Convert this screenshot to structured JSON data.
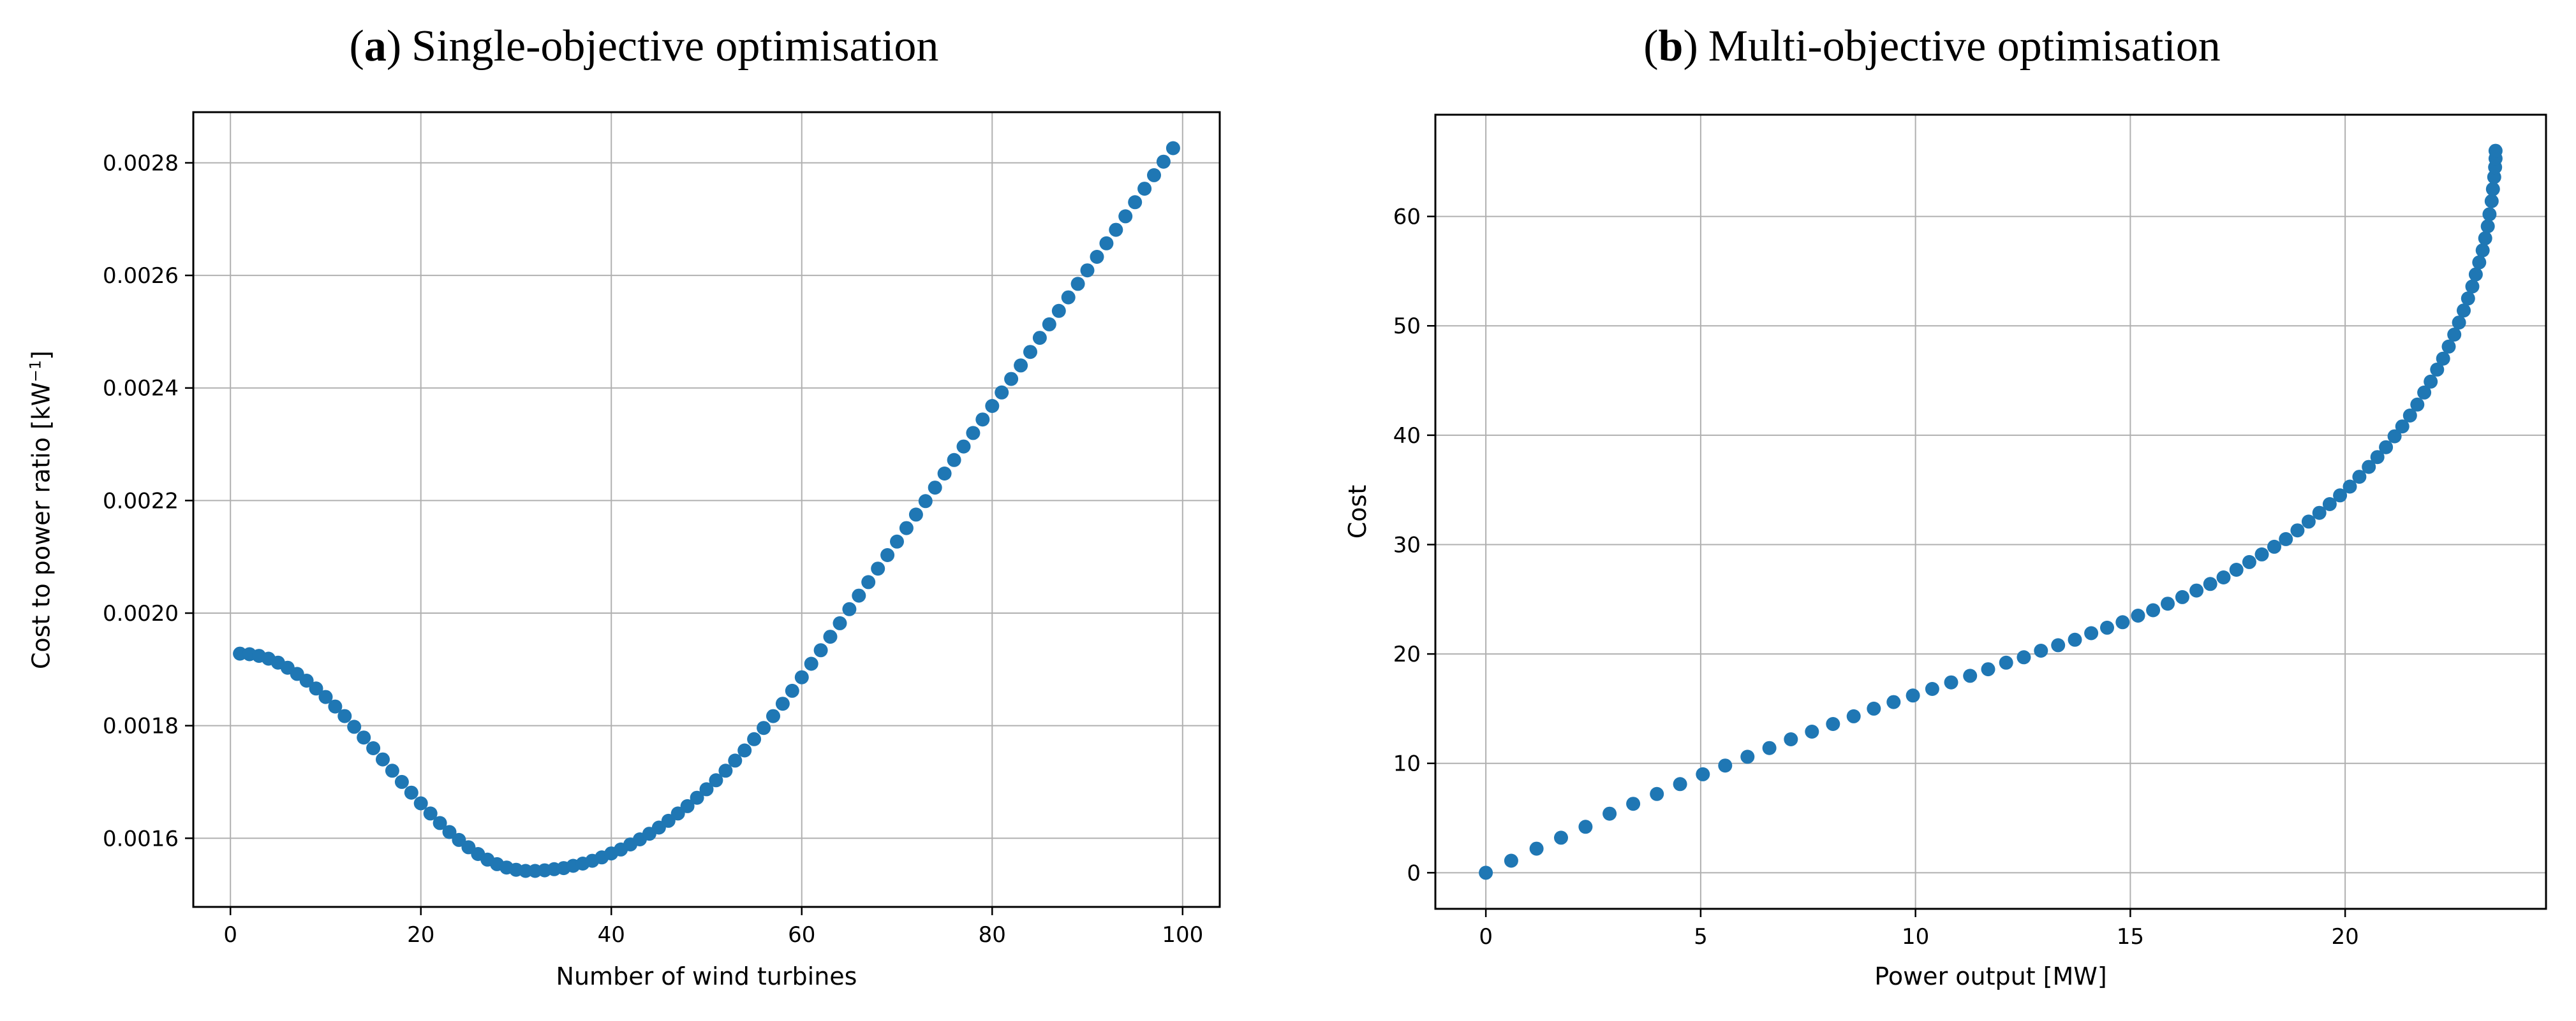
{
  "figure": {
    "background": "#ffffff",
    "marker_color": "#1f77b4",
    "grid_color": "#b0b0b0",
    "spine_color": "#000000"
  },
  "chart_data": [
    {
      "type": "scatter",
      "tag_open": "(",
      "tag_letter": "a",
      "tag_close": ")",
      "title": "Single-objective optimisation",
      "xlabel": "Number of wind turbines",
      "ylabel_pre": "Cost to power ratio [kW",
      "ylabel_sup": "−1",
      "ylabel_post": "]",
      "legend": "none",
      "grid": true,
      "xlim": [
        -3.9,
        103.9
      ],
      "ylim": [
        0.001478,
        0.00289
      ],
      "xticks": [
        0,
        20,
        40,
        60,
        80,
        100
      ],
      "xtick_labels": [
        "0",
        "20",
        "40",
        "60",
        "80",
        "100"
      ],
      "yticks": [
        0.0016,
        0.0018,
        0.002,
        0.0022,
        0.0024,
        0.0026,
        0.0028
      ],
      "ytick_labels": [
        "0.0016",
        "0.0018",
        "0.0020",
        "0.0022",
        "0.0024",
        "0.0026",
        "0.0028"
      ],
      "x": [
        1,
        2,
        3,
        4,
        5,
        6,
        7,
        8,
        9,
        10,
        11,
        12,
        13,
        14,
        15,
        16,
        17,
        18,
        19,
        20,
        21,
        22,
        23,
        24,
        25,
        26,
        27,
        28,
        29,
        30,
        31,
        32,
        33,
        34,
        35,
        36,
        37,
        38,
        39,
        40,
        41,
        42,
        43,
        44,
        45,
        46,
        47,
        48,
        49,
        50,
        51,
        52,
        53,
        54,
        55,
        56,
        57,
        58,
        59,
        60,
        61,
        62,
        63,
        64,
        65,
        66,
        67,
        68,
        69,
        70,
        71,
        72,
        73,
        74,
        75,
        76,
        77,
        78,
        79,
        80,
        81,
        82,
        83,
        84,
        85,
        86,
        87,
        88,
        89,
        90,
        91,
        92,
        93,
        94,
        95,
        96,
        97,
        98,
        99
      ],
      "y": [
        0.001928,
        0.001927,
        0.001924,
        0.001919,
        0.001912,
        0.001903,
        0.001892,
        0.00188,
        0.001866,
        0.001851,
        0.001834,
        0.001817,
        0.001798,
        0.001779,
        0.00176,
        0.00174,
        0.00172,
        0.0017,
        0.001681,
        0.001662,
        0.001644,
        0.001627,
        0.001611,
        0.001597,
        0.001584,
        0.001572,
        0.001562,
        0.001554,
        0.001548,
        0.001544,
        0.001542,
        0.001542,
        0.001543,
        0.001545,
        0.001547,
        0.001551,
        0.001555,
        0.00156,
        0.001566,
        0.001573,
        0.00158,
        0.001589,
        0.001598,
        0.001608,
        0.001619,
        0.001631,
        0.001644,
        0.001657,
        0.001672,
        0.001687,
        0.001703,
        0.00172,
        0.001738,
        0.001756,
        0.001776,
        0.001796,
        0.001817,
        0.001839,
        0.001862,
        0.001886,
        0.00191,
        0.001934,
        0.001958,
        0.001982,
        0.002007,
        0.002031,
        0.002055,
        0.002079,
        0.002103,
        0.002127,
        0.002151,
        0.002175,
        0.002199,
        0.002223,
        0.002248,
        0.002272,
        0.002296,
        0.00232,
        0.002344,
        0.002368,
        0.002392,
        0.002416,
        0.00244,
        0.002464,
        0.002489,
        0.002513,
        0.002537,
        0.002561,
        0.002585,
        0.002609,
        0.002633,
        0.002657,
        0.002681,
        0.002705,
        0.00273,
        0.002754,
        0.002778,
        0.002802,
        0.002826
      ]
    },
    {
      "type": "scatter",
      "tag_open": "(",
      "tag_letter": "b",
      "tag_close": ")",
      "title": "Multi-objective optimisation",
      "xlabel": "Power output [MW]",
      "ylabel": "Cost",
      "legend": "none",
      "grid": true,
      "xlim": [
        -1.175,
        24.675
      ],
      "ylim": [
        -3.3,
        69.3
      ],
      "xticks": [
        0,
        5,
        10,
        15,
        20
      ],
      "xtick_labels": [
        "0",
        "5",
        "10",
        "15",
        "20"
      ],
      "yticks": [
        0,
        10,
        20,
        30,
        40,
        50,
        60
      ],
      "ytick_labels": [
        "0",
        "10",
        "20",
        "30",
        "40",
        "50",
        "60"
      ],
      "x": [
        0,
        0.59,
        1.18,
        1.75,
        2.32,
        2.88,
        3.43,
        3.98,
        4.52,
        5.05,
        5.57,
        6.09,
        6.6,
        7.1,
        7.59,
        8.08,
        8.56,
        9.03,
        9.49,
        9.94,
        10.39,
        10.83,
        11.27,
        11.69,
        12.11,
        12.52,
        12.92,
        13.32,
        13.71,
        14.09,
        14.46,
        14.82,
        15.18,
        15.53,
        15.87,
        16.21,
        16.54,
        16.86,
        17.17,
        17.47,
        17.77,
        18.06,
        18.35,
        18.62,
        18.89,
        19.15,
        19.4,
        19.64,
        19.88,
        20.11,
        20.33,
        20.55,
        20.75,
        20.95,
        21.15,
        21.33,
        21.51,
        21.68,
        21.84,
        21.99,
        22.14,
        22.28,
        22.41,
        22.54,
        22.65,
        22.76,
        22.86,
        22.96,
        23.04,
        23.12,
        23.2,
        23.26,
        23.32,
        23.36,
        23.41,
        23.44,
        23.47,
        23.49,
        23.5,
        23.5
      ],
      "y": [
        0,
        1.1,
        2.2,
        3.2,
        4.2,
        5.4,
        6.3,
        7.2,
        8.1,
        9.0,
        9.8,
        10.6,
        11.4,
        12.2,
        12.9,
        13.6,
        14.3,
        15.0,
        15.6,
        16.2,
        16.8,
        17.4,
        18.0,
        18.6,
        19.2,
        19.7,
        20.3,
        20.8,
        21.3,
        21.9,
        22.4,
        22.9,
        23.5,
        24.0,
        24.6,
        25.2,
        25.8,
        26.4,
        27.0,
        27.7,
        28.4,
        29.1,
        29.8,
        30.5,
        31.3,
        32.1,
        32.9,
        33.7,
        34.5,
        35.3,
        36.2,
        37.1,
        38.0,
        38.9,
        39.9,
        40.8,
        41.8,
        42.8,
        43.9,
        44.9,
        46.0,
        47.0,
        48.1,
        49.2,
        50.3,
        51.4,
        52.5,
        53.6,
        54.7,
        55.8,
        56.9,
        58.0,
        59.1,
        60.2,
        61.4,
        62.5,
        63.6,
        64.5,
        65.3,
        66.0
      ]
    }
  ]
}
